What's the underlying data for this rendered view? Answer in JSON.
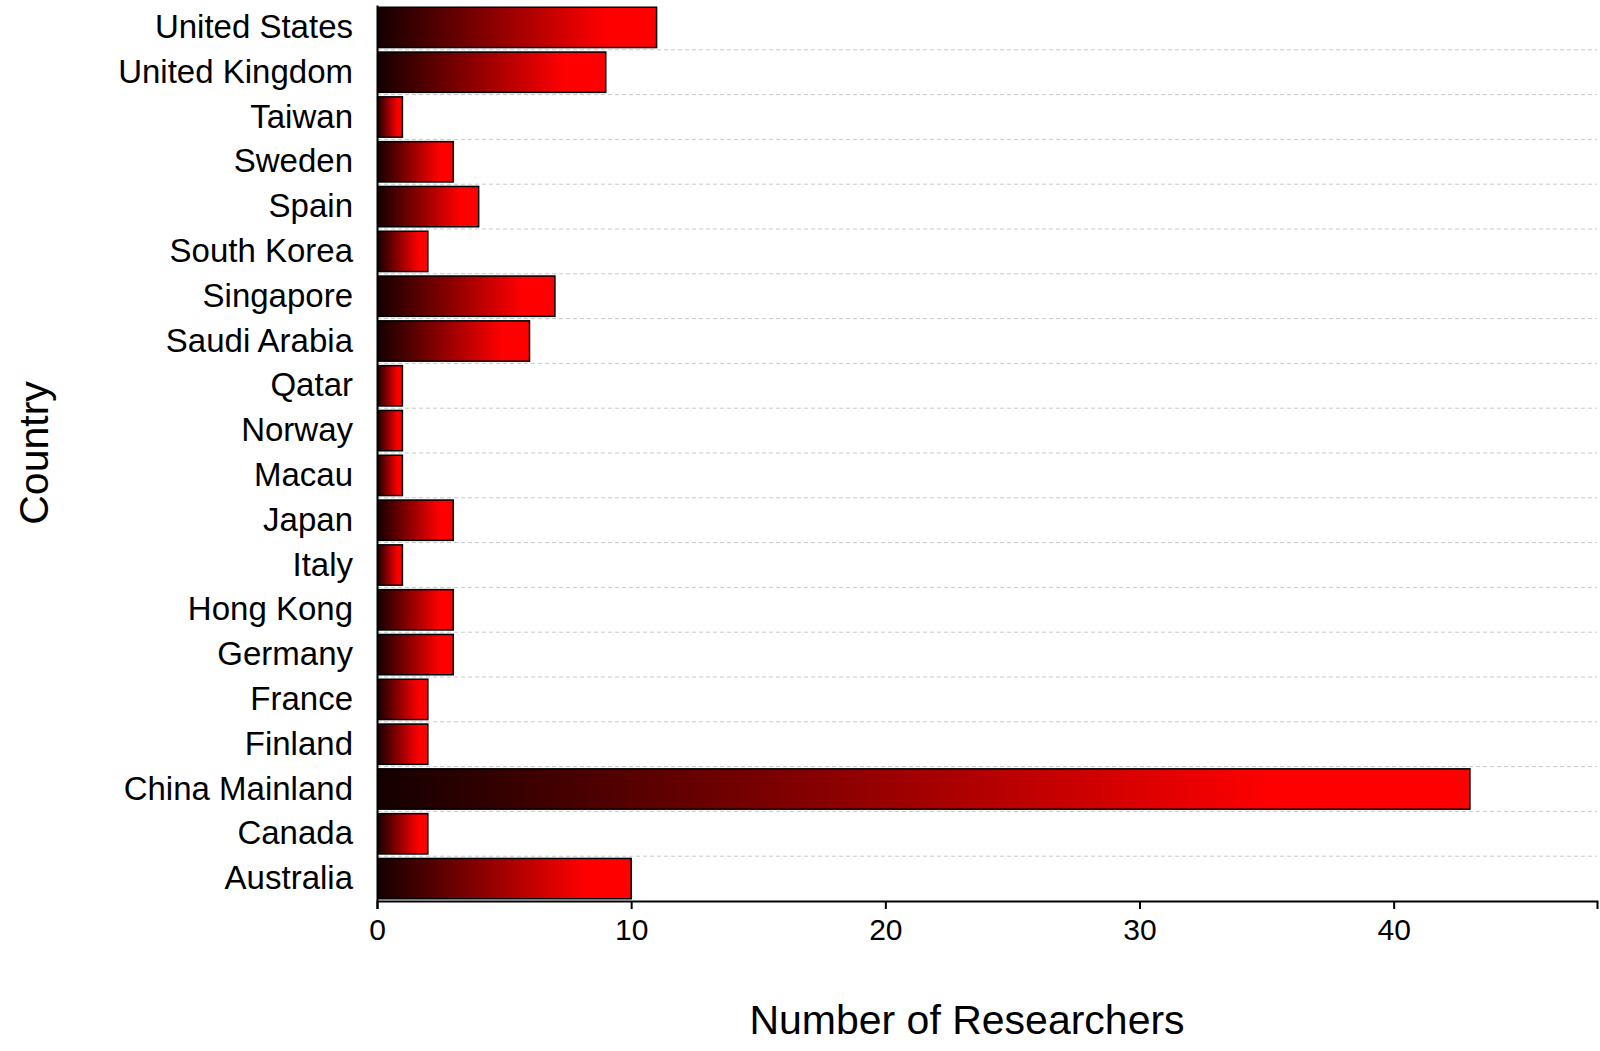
{
  "chart_data": {
    "type": "bar",
    "orientation": "horizontal",
    "xlabel": "Number of Researchers",
    "ylabel": "Country",
    "categories": [
      "United States",
      "United Kingdom",
      "Taiwan",
      "Sweden",
      "Spain",
      "South Korea",
      "Singapore",
      "Saudi Arabia",
      "Qatar",
      "Norway",
      "Macau",
      "Japan",
      "Italy",
      "Hong Kong",
      "Germany",
      "France",
      "Finland",
      "China Mainland",
      "Canada",
      "Australia"
    ],
    "values": [
      11,
      9,
      1,
      3,
      4,
      2,
      7,
      6,
      1,
      1,
      1,
      3,
      1,
      3,
      3,
      2,
      2,
      43,
      2,
      10
    ],
    "color": "#ff0000",
    "xlim": [
      0,
      48
    ],
    "xticks": [
      0,
      10,
      20,
      30,
      40
    ],
    "grid": true
  }
}
